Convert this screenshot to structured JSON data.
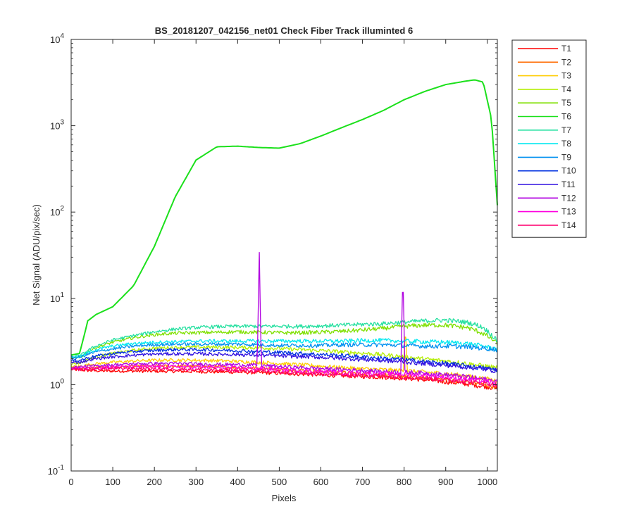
{
  "chart_data": {
    "type": "line",
    "title": "BS_20181207_042156_net01    Check Fiber      Track illuminted 6",
    "xlabel": "Pixels",
    "ylabel": "Net Signal (ADU/pix/sec)",
    "xlim": [
      0,
      1024
    ],
    "ylim": [
      0.1,
      10000
    ],
    "yscale": "log",
    "xticks": [
      "0",
      "100",
      "200",
      "300",
      "400",
      "500",
      "600",
      "700",
      "800",
      "900",
      "1000"
    ],
    "yticks": [
      {
        "base": "10",
        "exp": "-1"
      },
      {
        "base": "10",
        "exp": "0"
      },
      {
        "base": "10",
        "exp": "1"
      },
      {
        "base": "10",
        "exp": "2"
      },
      {
        "base": "10",
        "exp": "3"
      },
      {
        "base": "10",
        "exp": "4"
      }
    ],
    "grid": false,
    "legend_position": "outside-right",
    "x": [
      0,
      20,
      30,
      40,
      60,
      100,
      150,
      200,
      250,
      300,
      350,
      400,
      450,
      500,
      550,
      600,
      650,
      700,
      750,
      800,
      850,
      900,
      950,
      970,
      990,
      1010,
      1024
    ],
    "series": [
      {
        "name": "T1",
        "color": "#ff0000",
        "values": [
          1.5,
          1.48,
          1.47,
          1.46,
          1.45,
          1.44,
          1.44,
          1.43,
          1.43,
          1.42,
          1.41,
          1.4,
          1.38,
          1.36,
          1.33,
          1.3,
          1.27,
          1.25,
          1.22,
          1.19,
          1.14,
          1.08,
          1.02,
          0.99,
          0.96,
          0.93,
          0.9
        ]
      },
      {
        "name": "T2",
        "color": "#ff6a00",
        "values": [
          1.55,
          1.54,
          1.55,
          1.56,
          1.58,
          1.6,
          1.62,
          1.64,
          1.64,
          1.63,
          1.6,
          1.58,
          1.56,
          1.52,
          1.48,
          1.43,
          1.38,
          1.34,
          1.3,
          1.26,
          1.2,
          1.14,
          1.08,
          1.04,
          1.0,
          0.96,
          0.94
        ]
      },
      {
        "name": "T3",
        "color": "#ffcc00",
        "values": [
          1.62,
          1.63,
          1.66,
          1.7,
          1.75,
          1.82,
          1.88,
          1.92,
          1.93,
          1.92,
          1.9,
          1.86,
          1.82,
          1.76,
          1.7,
          1.64,
          1.58,
          1.53,
          1.49,
          1.45,
          1.4,
          1.34,
          1.26,
          1.22,
          1.18,
          1.14,
          1.12
        ]
      },
      {
        "name": "T4",
        "color": "#b3ee00",
        "values": [
          1.75,
          1.78,
          1.85,
          1.95,
          2.1,
          2.3,
          2.5,
          2.65,
          2.7,
          2.72,
          2.72,
          2.7,
          2.68,
          2.62,
          2.55,
          2.48,
          2.4,
          2.32,
          2.22,
          2.1,
          1.98,
          1.88,
          1.76,
          1.7,
          1.66,
          1.6,
          1.55
        ]
      },
      {
        "name": "T5",
        "color": "#7fe000",
        "values": [
          2.0,
          2.05,
          2.2,
          2.4,
          2.7,
          3.1,
          3.5,
          3.8,
          3.95,
          4.0,
          4.05,
          4.1,
          4.05,
          4.0,
          4.0,
          4.05,
          4.15,
          4.3,
          4.5,
          4.75,
          4.9,
          4.9,
          4.6,
          4.3,
          3.9,
          3.4,
          3.0
        ]
      },
      {
        "name": "T6",
        "color": "#1be01b",
        "values": [
          2.2,
          2.3,
          3.5,
          5.5,
          6.5,
          8.0,
          14.0,
          40.0,
          150,
          400,
          570,
          580,
          560,
          550,
          620,
          760,
          950,
          1180,
          1500,
          2000,
          2500,
          3000,
          3300,
          3400,
          3200,
          1200,
          120
        ]
      },
      {
        "name": "T7",
        "color": "#25e0a0",
        "values": [
          2.1,
          2.15,
          2.3,
          2.5,
          2.8,
          3.3,
          3.7,
          4.1,
          4.4,
          4.6,
          4.7,
          4.75,
          4.75,
          4.75,
          4.75,
          4.8,
          4.9,
          5.0,
          5.1,
          5.3,
          5.5,
          5.6,
          5.3,
          5.0,
          4.6,
          3.8,
          3.2
        ]
      },
      {
        "name": "T8",
        "color": "#00e8f0",
        "values": [
          2.1,
          2.12,
          2.2,
          2.35,
          2.55,
          2.8,
          3.0,
          3.1,
          3.15,
          3.2,
          3.2,
          3.2,
          3.2,
          3.2,
          3.2,
          3.2,
          3.2,
          3.25,
          3.25,
          3.2,
          3.15,
          3.1,
          3.0,
          2.9,
          2.8,
          2.65,
          2.6
        ]
      },
      {
        "name": "T9",
        "color": "#0090f0",
        "values": [
          2.05,
          2.08,
          2.15,
          2.25,
          2.4,
          2.6,
          2.8,
          2.9,
          2.95,
          2.95,
          2.95,
          2.95,
          2.9,
          2.85,
          2.85,
          2.85,
          2.9,
          2.9,
          2.9,
          2.85,
          2.8,
          2.8,
          2.75,
          2.7,
          2.65,
          2.6,
          2.55
        ]
      },
      {
        "name": "T10",
        "color": "#0030e0",
        "values": [
          1.9,
          1.92,
          1.98,
          2.05,
          2.15,
          2.3,
          2.42,
          2.5,
          2.55,
          2.55,
          2.52,
          2.48,
          2.42,
          2.36,
          2.3,
          2.24,
          2.18,
          2.1,
          2.02,
          1.95,
          1.85,
          1.76,
          1.66,
          1.6,
          1.56,
          1.52,
          1.5
        ]
      },
      {
        "name": "T11",
        "color": "#3010e0",
        "values": [
          1.8,
          1.82,
          1.86,
          1.92,
          2.0,
          2.1,
          2.2,
          2.26,
          2.28,
          2.28,
          2.26,
          2.24,
          2.2,
          2.16,
          2.12,
          2.08,
          2.02,
          1.96,
          1.9,
          1.84,
          1.76,
          1.68,
          1.6,
          1.56,
          1.52,
          1.48,
          1.45
        ]
      },
      {
        "name": "T12",
        "color": "#b000e0",
        "values": [
          1.6,
          1.6,
          1.62,
          1.64,
          1.66,
          1.7,
          1.74,
          1.76,
          1.76,
          1.74,
          1.72,
          1.7,
          1.68,
          1.62,
          1.58,
          1.54,
          1.5,
          1.46,
          1.42,
          1.4,
          1.36,
          1.3,
          1.24,
          1.2,
          1.16,
          1.12,
          1.1
        ]
      },
      {
        "name": "T13",
        "color": "#ff00e0",
        "values": [
          1.55,
          1.55,
          1.56,
          1.57,
          1.58,
          1.6,
          1.62,
          1.62,
          1.62,
          1.6,
          1.58,
          1.56,
          1.54,
          1.5,
          1.46,
          1.42,
          1.38,
          1.36,
          1.34,
          1.32,
          1.28,
          1.22,
          1.16,
          1.12,
          1.1,
          1.06,
          1.04
        ]
      },
      {
        "name": "T14",
        "color": "#ff0070",
        "values": [
          1.5,
          1.5,
          1.5,
          1.51,
          1.52,
          1.53,
          1.54,
          1.53,
          1.52,
          1.5,
          1.48,
          1.46,
          1.44,
          1.4,
          1.36,
          1.33,
          1.3,
          1.28,
          1.26,
          1.23,
          1.19,
          1.14,
          1.09,
          1.06,
          1.04,
          1.01,
          0.99
        ]
      }
    ],
    "annotations": [
      {
        "series": "T12",
        "type": "spike",
        "x": 452,
        "peak": 34
      },
      {
        "series": "T12",
        "type": "spike",
        "x": 797,
        "peak": 20
      },
      {
        "series": "T3",
        "type": "spike",
        "x": 803,
        "peak": 4.5
      }
    ]
  }
}
